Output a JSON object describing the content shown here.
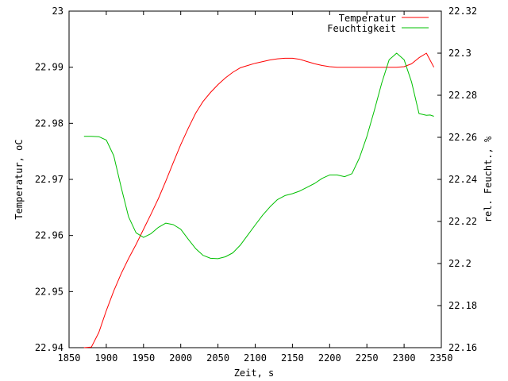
{
  "chart_data": {
    "type": "line",
    "title": "",
    "xlabel": "Zeit, s",
    "ylabel_left": "Temperatur, oC",
    "ylabel_right": "rel. Feucht., %",
    "xlim": [
      1850,
      2350
    ],
    "ylim_left": [
      22.94,
      23.0
    ],
    "ylim_right": [
      22.16,
      22.32
    ],
    "x_ticks": [
      "1850",
      "1900",
      "1950",
      "2000",
      "2050",
      "2100",
      "2150",
      "2200",
      "2250",
      "2300",
      "2350"
    ],
    "y_left_ticks": [
      "22.94",
      "22.95",
      "22.96",
      "22.97",
      "22.98",
      "22.99",
      "23"
    ],
    "y_right_ticks": [
      "22.16",
      "22.18",
      "22.2",
      "22.22",
      "22.24",
      "22.26",
      "22.28",
      "22.3",
      "22.32"
    ],
    "grid": false,
    "legend_position": "top-right",
    "series": [
      {
        "name": "Temperatur",
        "axis": "left",
        "color": "#ff0000",
        "x": [
          1870,
          1880,
          1890,
          1900,
          1910,
          1920,
          1930,
          1940,
          1950,
          1960,
          1970,
          1980,
          1990,
          2000,
          2010,
          2020,
          2030,
          2040,
          2050,
          2060,
          2070,
          2080,
          2090,
          2100,
          2110,
          2120,
          2130,
          2140,
          2150,
          2160,
          2170,
          2180,
          2190,
          2200,
          2210,
          2220,
          2230,
          2240,
          2250,
          2260,
          2270,
          2280,
          2290,
          2300,
          2310,
          2320,
          2330,
          2340
        ],
        "y": [
          22.9385,
          22.9401,
          22.9427,
          22.9466,
          22.9501,
          22.9532,
          22.9559,
          22.9584,
          22.9611,
          22.9638,
          22.9666,
          22.9697,
          22.973,
          22.9762,
          22.9791,
          22.9818,
          22.9839,
          22.9855,
          22.9869,
          22.9881,
          22.9891,
          22.9899,
          22.9903,
          22.9907,
          22.991,
          22.9913,
          22.9915,
          22.9916,
          22.9916,
          22.9914,
          22.991,
          22.9906,
          22.9903,
          22.9901,
          22.99,
          22.99,
          22.99,
          22.99,
          22.99,
          22.99,
          22.99,
          22.99,
          22.99,
          22.9901,
          22.9906,
          22.9917,
          22.9925,
          22.99
        ]
      },
      {
        "name": "Feuchtigkeit",
        "axis": "right",
        "color": "#00c000",
        "x": [
          1870,
          1880,
          1890,
          1900,
          1910,
          1920,
          1930,
          1940,
          1950,
          1960,
          1970,
          1980,
          1990,
          2000,
          2010,
          2020,
          2030,
          2040,
          2050,
          2060,
          2070,
          2080,
          2090,
          2100,
          2110,
          2120,
          2130,
          2140,
          2150,
          2160,
          2170,
          2180,
          2190,
          2200,
          2210,
          2220,
          2230,
          2240,
          2250,
          2260,
          2270,
          2280,
          2290,
          2300,
          2310,
          2320,
          2330,
          2335,
          2340
        ],
        "y": [
          22.2605,
          22.2605,
          22.2603,
          22.2587,
          22.2513,
          22.2362,
          22.2222,
          22.2146,
          22.2124,
          22.2142,
          22.2172,
          22.2192,
          22.2185,
          22.2163,
          22.2116,
          22.2071,
          22.2039,
          22.2025,
          22.2023,
          22.2032,
          22.2051,
          22.2087,
          22.2135,
          22.2183,
          22.223,
          22.227,
          22.2304,
          22.2323,
          22.2332,
          22.2345,
          22.2363,
          22.2381,
          22.2405,
          22.2421,
          22.2421,
          22.2413,
          22.2427,
          22.2502,
          22.2604,
          22.2728,
          22.2859,
          22.2969,
          22.3,
          22.2969,
          22.2863,
          22.2713,
          22.2705,
          22.2706,
          22.27
        ]
      }
    ]
  }
}
